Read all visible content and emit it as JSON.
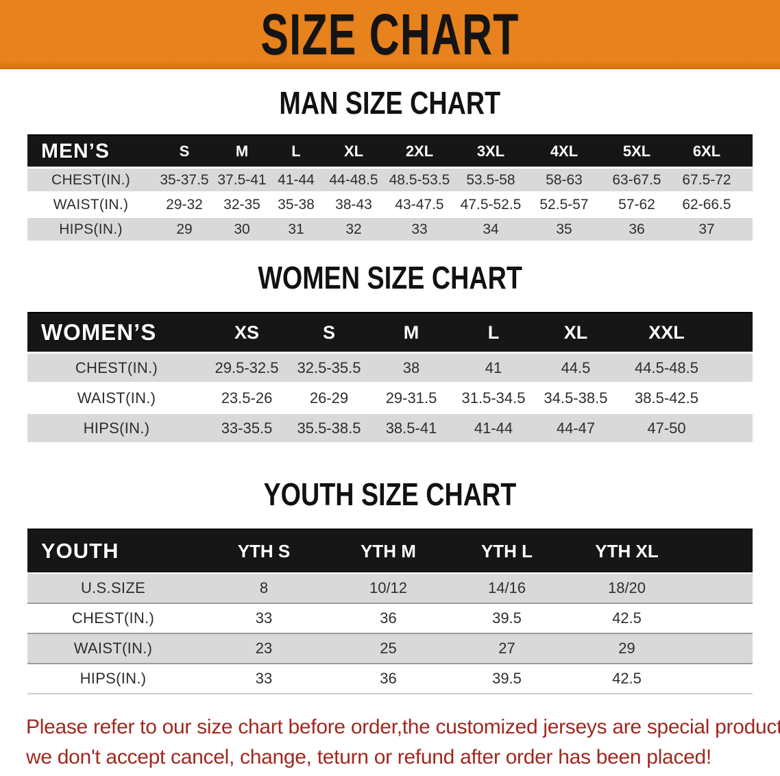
{
  "banner": {
    "title": "SIZE CHART"
  },
  "colors": {
    "banner_orange": "#e8821c",
    "header_black": "#161616",
    "row_gray": "#d9d9d9",
    "disclaimer_red": "#a02820"
  },
  "sections": [
    {
      "heading": "MAN SIZE CHART",
      "table": {
        "header_label": "MEN’S",
        "columns": [
          "S",
          "M",
          "L",
          "XL",
          "2XL",
          "3XL",
          "4XL",
          "5XL",
          "6XL"
        ],
        "rows": [
          {
            "label": "CHEST(IN.)",
            "values": [
              "35-37.5",
              "37.5-41",
              "41-44",
              "44-48.5",
              "48.5-53.5",
              "53.5-58",
              "58-63",
              "63-67.5",
              "67.5-72"
            ]
          },
          {
            "label": "WAIST(IN.)",
            "values": [
              "29-32",
              "32-35",
              "35-38",
              "38-43",
              "43-47.5",
              "47.5-52.5",
              "52.5-57",
              "57-62",
              "62-66.5"
            ]
          },
          {
            "label": "HIPS(IN.)",
            "values": [
              "29",
              "30",
              "31",
              "32",
              "33",
              "34",
              "35",
              "36",
              "37"
            ]
          }
        ]
      }
    },
    {
      "heading": "WOMEN SIZE CHART",
      "table": {
        "header_label": "WOMEN’S",
        "columns": [
          "XS",
          "S",
          "M",
          "L",
          "XL",
          "XXL"
        ],
        "rows": [
          {
            "label": "CHEST(IN.)",
            "values": [
              "29.5-32.5",
              "32.5-35.5",
              "38",
              "41",
              "44.5",
              "44.5-48.5"
            ]
          },
          {
            "label": "WAIST(IN.)",
            "values": [
              "23.5-26",
              "26-29",
              "29-31.5",
              "31.5-34.5",
              "34.5-38.5",
              "38.5-42.5"
            ]
          },
          {
            "label": "HIPS(IN.)",
            "values": [
              "33-35.5",
              "35.5-38.5",
              "38.5-41",
              "41-44",
              "44-47",
              "47-50"
            ]
          }
        ]
      }
    },
    {
      "heading": "YOUTH SIZE CHART",
      "table": {
        "header_label": "YOUTH",
        "columns": [
          "YTH S",
          "YTH M",
          "YTH L",
          "YTH XL"
        ],
        "rows": [
          {
            "label": "U.S.SIZE",
            "values": [
              "8",
              "10/12",
              "14/16",
              "18/20"
            ]
          },
          {
            "label": "CHEST(IN.)",
            "values": [
              "33",
              "36",
              "39.5",
              "42.5"
            ]
          },
          {
            "label": "WAIST(IN.)",
            "values": [
              "23",
              "25",
              "27",
              "29"
            ]
          },
          {
            "label": "HIPS(IN.)",
            "values": [
              "33",
              "36",
              "39.5",
              "42.5"
            ]
          }
        ]
      }
    }
  ],
  "disclaimer": {
    "line1": "Please refer to our size chart before order,the customized jerseys are special products,",
    "line2": "we don't accept cancel, change, teturn or refund after order has been placed!"
  }
}
